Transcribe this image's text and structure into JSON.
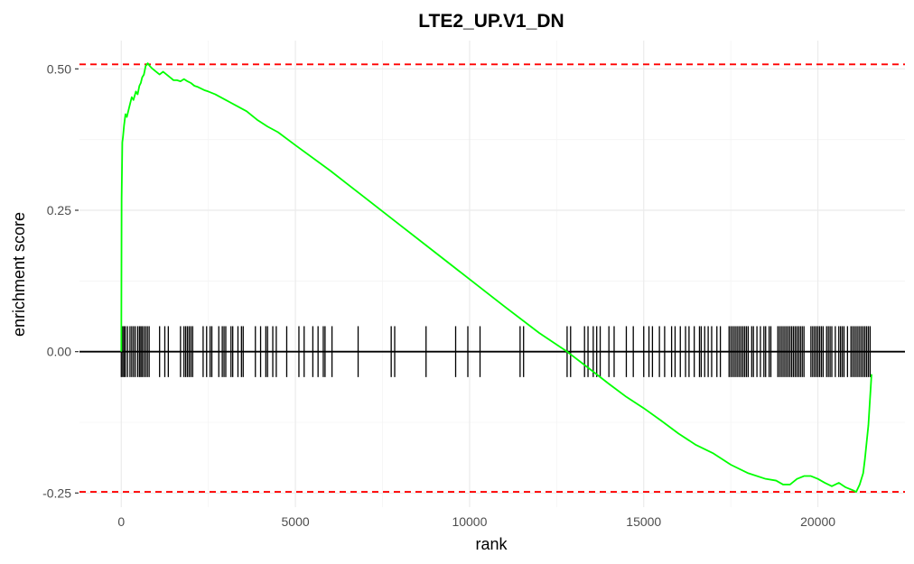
{
  "chart_data": {
    "type": "line",
    "title": "LTE2_UP.V1_DN",
    "xlabel": "rank",
    "ylabel": "enrichment score",
    "xlim": [
      -1200,
      22500
    ],
    "ylim": [
      -0.275,
      0.55
    ],
    "x_ticks": [
      0,
      5000,
      10000,
      15000,
      20000
    ],
    "x_tick_labels": [
      "0",
      "5000",
      "10000",
      "15000",
      "20000"
    ],
    "y_ticks": [
      -0.25,
      0,
      0.25,
      0.5
    ],
    "y_tick_labels": [
      "-0.25",
      "0.00",
      "0.25",
      "0.50"
    ],
    "grid": true,
    "colors": {
      "curve": "#00ff00",
      "threshold": "#ff0000",
      "ticks": "#000000",
      "zero_line": "#000000"
    },
    "reference_lines": [
      {
        "y": 0.508,
        "style": "dashed",
        "color": "#ff0000"
      },
      {
        "y": -0.248,
        "style": "dashed",
        "color": "#ff0000"
      },
      {
        "y": 0.0,
        "style": "solid",
        "color": "#000000"
      }
    ],
    "hit_marker_half_height": 0.045,
    "series": [
      {
        "x": [
          0,
          10,
          30,
          50,
          80,
          120,
          160,
          220,
          300,
          350,
          420,
          470,
          520,
          560,
          600,
          650,
          700,
          760,
          820,
          900,
          1000,
          1100,
          1200,
          1300,
          1400,
          1500,
          1600,
          1700,
          1800,
          1900,
          2000,
          2100,
          2200,
          2300,
          2400,
          2500,
          2700,
          3000,
          3300,
          3600,
          3900,
          4200,
          4500,
          5000,
          6000,
          7000,
          8000,
          9000,
          10000,
          11000,
          12000,
          12800,
          13500,
          14000,
          14500,
          15000,
          15500,
          16000,
          16500,
          17000,
          17500,
          18000,
          18500,
          18800,
          19000,
          19200,
          19400,
          19600,
          19800,
          20000,
          20200,
          20400,
          20600,
          20800,
          21000,
          21100,
          21200,
          21300,
          21350,
          21400,
          21450,
          21480,
          21500,
          21520,
          21540
        ],
        "y": [
          0.0,
          0.27,
          0.37,
          0.38,
          0.4,
          0.42,
          0.415,
          0.43,
          0.45,
          0.445,
          0.46,
          0.455,
          0.47,
          0.475,
          0.485,
          0.49,
          0.505,
          0.51,
          0.505,
          0.5,
          0.495,
          0.49,
          0.495,
          0.49,
          0.485,
          0.48,
          0.48,
          0.478,
          0.482,
          0.478,
          0.475,
          0.47,
          0.468,
          0.465,
          0.462,
          0.46,
          0.455,
          0.445,
          0.435,
          0.425,
          0.41,
          0.398,
          0.388,
          0.365,
          0.32,
          0.272,
          0.224,
          0.176,
          0.128,
          0.08,
          0.033,
          0.0,
          -0.033,
          -0.057,
          -0.08,
          -0.1,
          -0.122,
          -0.145,
          -0.165,
          -0.18,
          -0.2,
          -0.215,
          -0.225,
          -0.228,
          -0.235,
          -0.235,
          -0.225,
          -0.22,
          -0.22,
          -0.225,
          -0.232,
          -0.238,
          -0.232,
          -0.24,
          -0.245,
          -0.248,
          -0.235,
          -0.215,
          -0.19,
          -0.16,
          -0.13,
          -0.1,
          -0.08,
          -0.06,
          -0.04
        ]
      }
    ],
    "hits": [
      0,
      40,
      80,
      120,
      180,
      250,
      300,
      350,
      400,
      470,
      520,
      560,
      600,
      650,
      700,
      750,
      800,
      1100,
      1250,
      1350,
      1700,
      1800,
      1850,
      1900,
      1950,
      2000,
      2050,
      2350,
      2450,
      2550,
      2600,
      2800,
      2900,
      2950,
      3000,
      3150,
      3200,
      3350,
      3450,
      3500,
      3850,
      4000,
      4150,
      4200,
      4350,
      4450,
      4750,
      5100,
      5250,
      5500,
      5650,
      5800,
      5850,
      6050,
      6800,
      7750,
      7850,
      8750,
      9600,
      9950,
      10300,
      11450,
      11550,
      12800,
      12900,
      13300,
      13400,
      13550,
      13650,
      13750,
      14000,
      14150,
      14500,
      14700,
      15000,
      15150,
      15250,
      15450,
      15600,
      15800,
      15900,
      16050,
      16200,
      16300,
      16450,
      16600,
      16650,
      16750,
      16850,
      16950,
      17100,
      17200,
      17450,
      17500,
      17550,
      17600,
      17650,
      17700,
      17750,
      17800,
      17850,
      17900,
      17950,
      18000,
      18100,
      18150,
      18250,
      18350,
      18450,
      18500,
      18600,
      18650,
      18850,
      18900,
      18950,
      19000,
      19050,
      19100,
      19150,
      19200,
      19250,
      19300,
      19350,
      19400,
      19450,
      19500,
      19550,
      19600,
      19800,
      19850,
      19900,
      19950,
      20000,
      20050,
      20100,
      20150,
      20250,
      20300,
      20350,
      20400,
      20500,
      20600,
      20650,
      20700,
      20750,
      20850,
      20950,
      21000,
      21050,
      21100,
      21150,
      21200,
      21250,
      21300,
      21350,
      21400,
      21450,
      21500
    ]
  }
}
